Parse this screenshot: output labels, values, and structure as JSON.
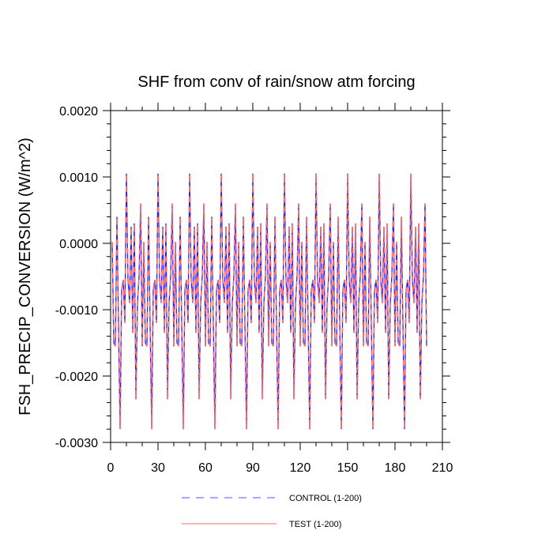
{
  "chart_data": {
    "type": "line",
    "title": "SHF from conv of rain/snow atm forcing",
    "xlabel": "",
    "ylabel": "FSH_PRECIP_CONVERSION  (W/m^2)",
    "xlim": [
      0,
      210
    ],
    "ylim": [
      -0.003,
      0.002
    ],
    "x_ticks": [
      "0",
      "30",
      "60",
      "90",
      "120",
      "150",
      "180",
      "210"
    ],
    "y_ticks": [
      "-0.0030",
      "-0.0020",
      "-0.0010",
      "0.0000",
      "0.0010",
      "0.0020"
    ],
    "grid": false,
    "legend_placement": "bottom",
    "period_pattern": {
      "period": 20,
      "offsets": [
        0,
        1,
        2,
        3,
        4,
        5,
        6,
        7,
        8,
        9,
        10,
        11,
        12,
        13,
        14,
        15,
        16,
        17,
        18,
        19
      ],
      "values": [
        2e-05,
        -0.0015,
        -0.00155,
        0.0004,
        -0.0012,
        -0.0028,
        -0.0007,
        -0.00055,
        -0.0012,
        0.00105,
        -0.00055,
        -0.0009,
        0.00025,
        -0.00135,
        0.0003,
        -0.00235,
        -0.0009,
        -0.0005,
        0.0006,
        -0.00155
      ]
    },
    "x_start": 1,
    "x_end": 200,
    "series": [
      {
        "name": "CONTROL (1-200)",
        "color": "#0000ff",
        "dash": "dashed"
      },
      {
        "name": "TEST (1-200)",
        "color": "#ff6a6a",
        "dash": "solid"
      }
    ]
  }
}
